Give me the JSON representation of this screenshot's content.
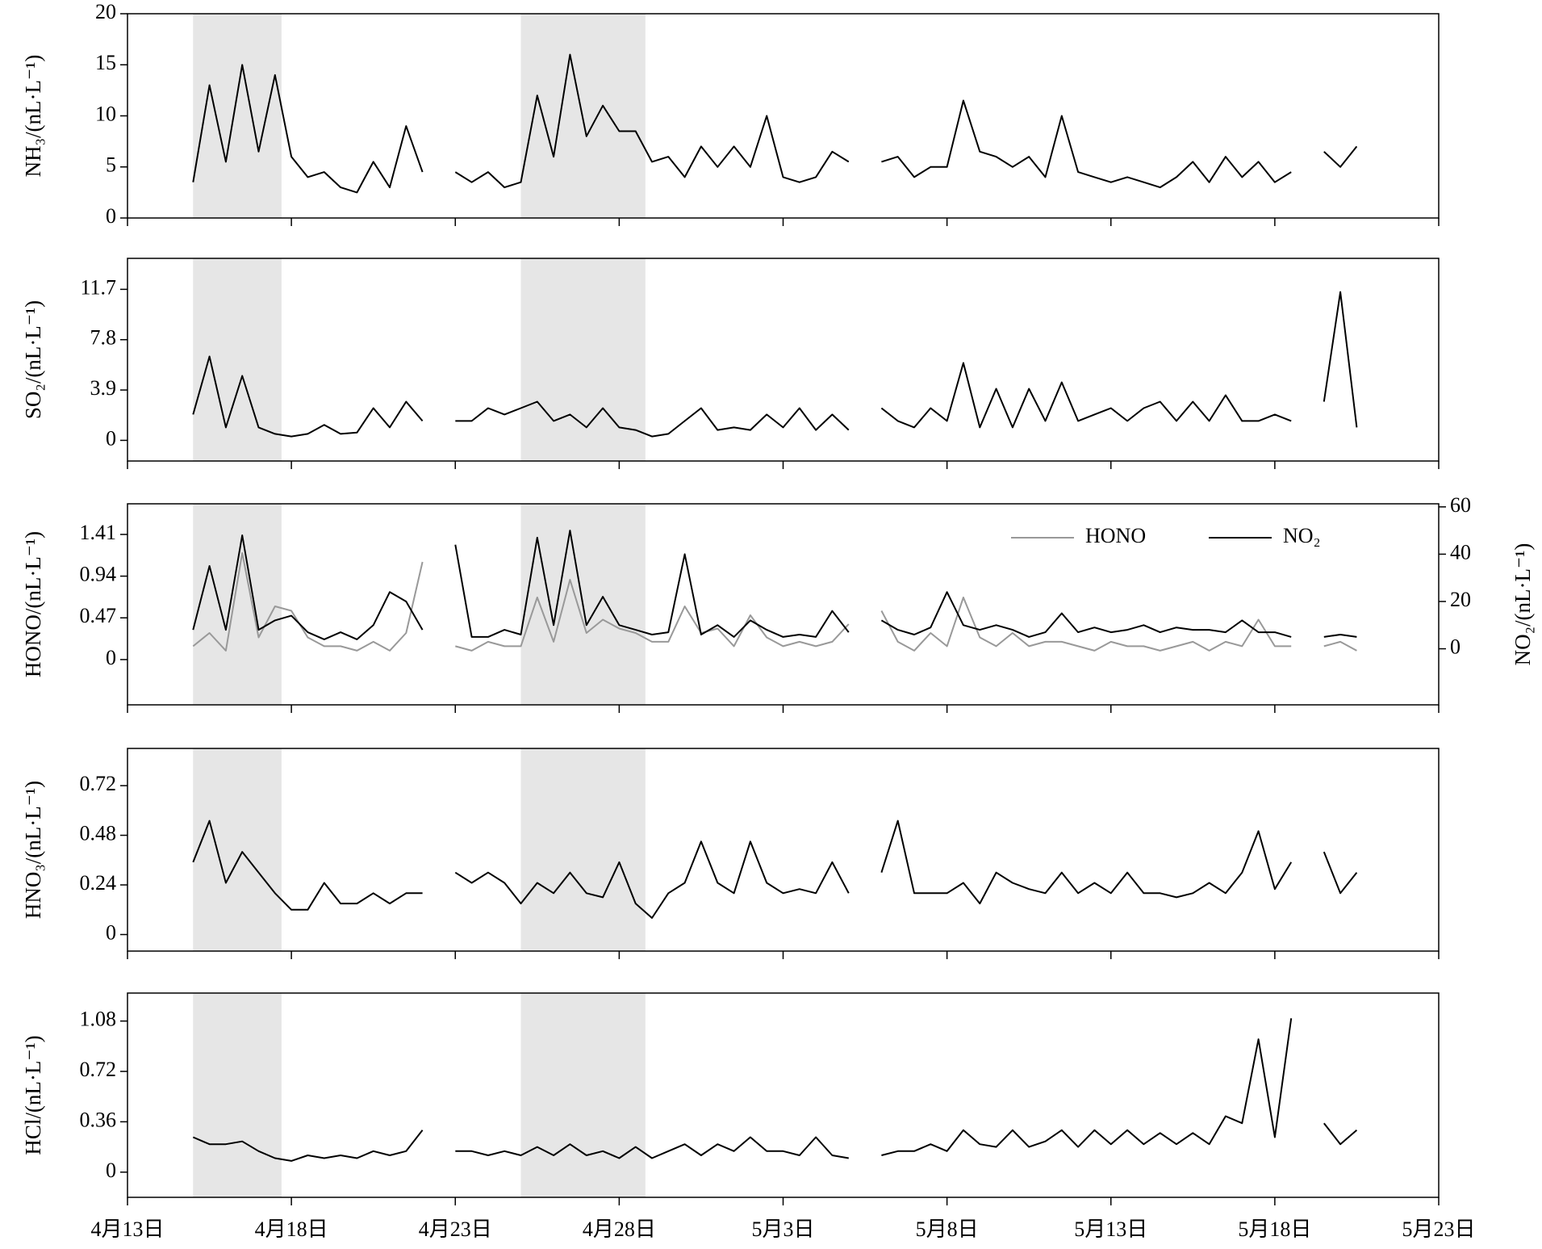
{
  "chart_data": [
    {
      "type": "line",
      "y_label": "NH₃/(nL·L⁻¹)",
      "x": [
        2,
        2.5,
        3,
        3.5,
        4,
        4.5,
        5,
        5.5,
        6,
        6.5,
        7,
        7.5,
        8,
        8.5,
        9,
        9.5,
        10,
        10.5,
        11,
        11.5,
        12,
        12.5,
        13,
        13.5,
        14,
        14.5,
        15,
        15.5,
        16,
        16.5,
        17,
        17.5,
        18,
        18.5,
        19,
        19.5,
        20,
        20.5,
        21,
        21.5,
        22,
        22.5,
        23,
        23.5,
        24,
        24.5,
        25,
        25.5,
        26,
        26.5,
        27,
        27.5,
        28,
        28.5,
        29,
        29.5,
        30,
        30.5,
        31,
        31.5,
        32,
        32.5,
        33,
        33.5,
        34,
        34.5,
        35,
        35.5,
        36,
        36.5,
        37,
        37.5
      ],
      "values": [
        3.5,
        13,
        5.5,
        15,
        6.5,
        14,
        6,
        4,
        4.5,
        3,
        2.5,
        5.5,
        3,
        9,
        4.5,
        null,
        4.5,
        3.5,
        4.5,
        3,
        3.5,
        12,
        6,
        16,
        8,
        11,
        8.5,
        8.5,
        5.5,
        6,
        4,
        7,
        5,
        7,
        5,
        10,
        4,
        3.5,
        4,
        6.5,
        5.5,
        null,
        5.5,
        6,
        4,
        5,
        5,
        11.5,
        6.5,
        6,
        5,
        6,
        4,
        10,
        4.5,
        4,
        3.5,
        4,
        3.5,
        3,
        4,
        5.5,
        3.5,
        6,
        4,
        5.5,
        3.5,
        4.5,
        null,
        6.5,
        5,
        7
      ],
      "color": "#000000",
      "xlim": [
        0,
        40
      ],
      "xticks": [
        0,
        5,
        10,
        15,
        20,
        25,
        30,
        35,
        40
      ],
      "show_xtick_labels": false,
      "ylim": [
        0,
        20
      ],
      "yticks": [
        0,
        5,
        10,
        15,
        20
      ],
      "shaded": [
        [
          2,
          4.7
        ],
        [
          12,
          15.8
        ]
      ],
      "shade_color": "#e6e6e6"
    },
    {
      "type": "line",
      "y_label": "SO₂/(nL·L⁻¹)",
      "x": [
        2,
        2.5,
        3,
        3.5,
        4,
        4.5,
        5,
        5.5,
        6,
        6.5,
        7,
        7.5,
        8,
        8.5,
        9,
        9.5,
        10,
        10.5,
        11,
        11.5,
        12,
        12.5,
        13,
        13.5,
        14,
        14.5,
        15,
        15.5,
        16,
        16.5,
        17,
        17.5,
        18,
        18.5,
        19,
        19.5,
        20,
        20.5,
        21,
        21.5,
        22,
        22.5,
        23,
        23.5,
        24,
        24.5,
        25,
        25.5,
        26,
        26.5,
        27,
        27.5,
        28,
        28.5,
        29,
        29.5,
        30,
        30.5,
        31,
        31.5,
        32,
        32.5,
        33,
        33.5,
        34,
        34.5,
        35,
        35.5,
        36,
        36.5,
        37,
        37.5
      ],
      "values": [
        2,
        6.5,
        1,
        5,
        1,
        0.5,
        0.3,
        0.5,
        1.2,
        0.5,
        0.6,
        2.5,
        1,
        3,
        1.5,
        null,
        1.5,
        1.5,
        2.5,
        2,
        2.5,
        3,
        1.5,
        2,
        1,
        2.5,
        1,
        0.8,
        0.3,
        0.5,
        1.5,
        2.5,
        0.8,
        1,
        0.8,
        2,
        1,
        2.5,
        0.8,
        2,
        0.8,
        null,
        2.5,
        1.5,
        1,
        2.5,
        1.5,
        6,
        1,
        4,
        1,
        4,
        1.5,
        4.5,
        1.5,
        2,
        2.5,
        1.5,
        2.5,
        3,
        1.5,
        3,
        1.5,
        3.5,
        1.5,
        1.5,
        2,
        1.5,
        null,
        3,
        11.5,
        1
      ],
      "color": "#000000",
      "xlim": [
        0,
        40
      ],
      "xticks": [
        0,
        5,
        10,
        15,
        20,
        25,
        30,
        35,
        40
      ],
      "show_xtick_labels": false,
      "ylim": [
        -1.6,
        14.1
      ],
      "yticks": [
        0,
        3.9,
        7.8,
        11.7
      ],
      "shaded": [
        [
          2,
          4.7
        ],
        [
          12,
          15.8
        ]
      ],
      "shade_color": "#e6e6e6"
    },
    {
      "type": "line",
      "y_label": "HONO/(nL·L⁻¹)",
      "y2_label": "NO₂/(nL·L⁻¹)",
      "x": [
        2,
        2.5,
        3,
        3.5,
        4,
        4.5,
        5,
        5.5,
        6,
        6.5,
        7,
        7.5,
        8,
        8.5,
        9,
        9.5,
        10,
        10.5,
        11,
        11.5,
        12,
        12.5,
        13,
        13.5,
        14,
        14.5,
        15,
        15.5,
        16,
        16.5,
        17,
        17.5,
        18,
        18.5,
        19,
        19.5,
        20,
        20.5,
        21,
        21.5,
        22,
        22.5,
        23,
        23.5,
        24,
        24.5,
        25,
        25.5,
        26,
        26.5,
        27,
        27.5,
        28,
        28.5,
        29,
        29.5,
        30,
        30.5,
        31,
        31.5,
        32,
        32.5,
        33,
        33.5,
        34,
        34.5,
        35,
        35.5,
        36,
        36.5,
        37,
        37.5
      ],
      "series": [
        {
          "name": "HONO",
          "color": "#999999",
          "values": [
            0.15,
            0.3,
            0.1,
            1.2,
            0.25,
            0.6,
            0.55,
            0.25,
            0.15,
            0.15,
            0.1,
            0.2,
            0.1,
            0.3,
            1.1,
            null,
            0.15,
            0.1,
            0.2,
            0.15,
            0.15,
            0.7,
            0.2,
            0.9,
            0.3,
            0.45,
            0.35,
            0.3,
            0.2,
            0.2,
            0.6,
            0.3,
            0.35,
            0.15,
            0.5,
            0.25,
            0.15,
            0.2,
            0.15,
            0.2,
            0.4,
            null,
            0.55,
            0.2,
            0.1,
            0.3,
            0.15,
            0.7,
            0.25,
            0.15,
            0.3,
            0.15,
            0.2,
            0.2,
            0.15,
            0.1,
            0.2,
            0.15,
            0.15,
            0.1,
            0.15,
            0.2,
            0.1,
            0.2,
            0.15,
            0.45,
            0.15,
            0.15,
            null,
            0.15,
            0.2,
            0.1
          ]
        },
        {
          "name": "NO₂",
          "color": "#000000",
          "axis": "y2",
          "values": [
            8,
            35,
            8,
            48,
            8,
            12,
            14,
            7,
            4,
            7,
            4,
            10,
            24,
            20,
            8,
            null,
            44,
            5,
            5,
            8,
            6,
            47,
            10,
            50,
            10,
            22,
            10,
            8,
            6,
            7,
            40,
            6,
            10,
            5,
            12,
            8,
            5,
            6,
            5,
            16,
            7,
            null,
            12,
            8,
            6,
            9,
            24,
            10,
            8,
            10,
            8,
            5,
            7,
            15,
            7,
            9,
            7,
            8,
            10,
            7,
            9,
            8,
            8,
            7,
            12,
            7,
            7,
            5,
            null,
            5,
            6,
            5
          ]
        }
      ],
      "legend": "upper right",
      "xlim": [
        0,
        40
      ],
      "xticks": [
        0,
        5,
        10,
        15,
        20,
        25,
        30,
        35,
        40
      ],
      "show_xtick_labels": false,
      "ylim": [
        -0.51,
        1.755
      ],
      "yticks": [
        0,
        0.47,
        0.94,
        1.41
      ],
      "y2lim": [
        -23.7,
        61.3
      ],
      "y2ticks": [
        0,
        20,
        40,
        60
      ],
      "shaded": [
        [
          2,
          4.7
        ],
        [
          12,
          15.8
        ]
      ],
      "shade_color": "#e6e6e6"
    },
    {
      "type": "line",
      "y_label": "HNO₃/(nL·L⁻¹)",
      "x": [
        2,
        2.5,
        3,
        3.5,
        4,
        4.5,
        5,
        5.5,
        6,
        6.5,
        7,
        7.5,
        8,
        8.5,
        9,
        9.5,
        10,
        10.5,
        11,
        11.5,
        12,
        12.5,
        13,
        13.5,
        14,
        14.5,
        15,
        15.5,
        16,
        16.5,
        17,
        17.5,
        18,
        18.5,
        19,
        19.5,
        20,
        20.5,
        21,
        21.5,
        22,
        22.5,
        23,
        23.5,
        24,
        24.5,
        25,
        25.5,
        26,
        26.5,
        27,
        27.5,
        28,
        28.5,
        29,
        29.5,
        30,
        30.5,
        31,
        31.5,
        32,
        32.5,
        33,
        33.5,
        34,
        34.5,
        35,
        35.5,
        36,
        36.5,
        37,
        37.5
      ],
      "values": [
        0.35,
        0.55,
        0.25,
        0.4,
        0.3,
        0.2,
        0.12,
        0.12,
        0.25,
        0.15,
        0.15,
        0.2,
        0.15,
        0.2,
        0.2,
        null,
        0.3,
        0.25,
        0.3,
        0.25,
        0.15,
        0.25,
        0.2,
        0.3,
        0.2,
        0.18,
        0.35,
        0.15,
        0.08,
        0.2,
        0.25,
        0.45,
        0.25,
        0.2,
        0.45,
        0.25,
        0.2,
        0.22,
        0.2,
        0.35,
        0.2,
        null,
        0.3,
        0.55,
        0.2,
        0.2,
        0.2,
        0.25,
        0.15,
        0.3,
        0.25,
        0.22,
        0.2,
        0.3,
        0.2,
        0.25,
        0.2,
        0.3,
        0.2,
        0.2,
        0.18,
        0.2,
        0.25,
        0.2,
        0.3,
        0.5,
        0.22,
        0.35,
        null,
        0.4,
        0.2,
        0.3
      ],
      "color": "#000000",
      "xlim": [
        0,
        40
      ],
      "xticks": [
        0,
        5,
        10,
        15,
        20,
        25,
        30,
        35,
        40
      ],
      "show_xtick_labels": false,
      "ylim": [
        -0.08,
        0.9
      ],
      "yticks": [
        0,
        0.24,
        0.48,
        0.72
      ],
      "shaded": [
        [
          2,
          4.7
        ],
        [
          12,
          15.8
        ]
      ],
      "shade_color": "#e6e6e6"
    },
    {
      "type": "line",
      "y_label": "HCl/(nL·L⁻¹)",
      "x": [
        2,
        2.5,
        3,
        3.5,
        4,
        4.5,
        5,
        5.5,
        6,
        6.5,
        7,
        7.5,
        8,
        8.5,
        9,
        9.5,
        10,
        10.5,
        11,
        11.5,
        12,
        12.5,
        13,
        13.5,
        14,
        14.5,
        15,
        15.5,
        16,
        16.5,
        17,
        17.5,
        18,
        18.5,
        19,
        19.5,
        20,
        20.5,
        21,
        21.5,
        22,
        22.5,
        23,
        23.5,
        24,
        24.5,
        25,
        25.5,
        26,
        26.5,
        27,
        27.5,
        28,
        28.5,
        29,
        29.5,
        30,
        30.5,
        31,
        31.5,
        32,
        32.5,
        33,
        33.5,
        34,
        34.5,
        35,
        35.5,
        36,
        36.5,
        37,
        37.5
      ],
      "values": [
        0.25,
        0.2,
        0.2,
        0.22,
        0.15,
        0.1,
        0.08,
        0.12,
        0.1,
        0.12,
        0.1,
        0.15,
        0.12,
        0.15,
        0.3,
        null,
        0.15,
        0.15,
        0.12,
        0.15,
        0.12,
        0.18,
        0.12,
        0.2,
        0.12,
        0.15,
        0.1,
        0.18,
        0.1,
        0.15,
        0.2,
        0.12,
        0.2,
        0.15,
        0.25,
        0.15,
        0.15,
        0.12,
        0.25,
        0.12,
        0.1,
        null,
        0.12,
        0.15,
        0.15,
        0.2,
        0.15,
        0.3,
        0.2,
        0.18,
        0.3,
        0.18,
        0.22,
        0.3,
        0.18,
        0.3,
        0.2,
        0.3,
        0.2,
        0.28,
        0.2,
        0.28,
        0.2,
        0.4,
        0.35,
        0.95,
        0.25,
        1.1,
        null,
        0.35,
        0.2,
        0.3
      ],
      "color": "#000000",
      "xlim": [
        0,
        40
      ],
      "xticks": [
        {
          "value": 0,
          "label": "4月13日"
        },
        {
          "value": 5,
          "label": "4月18日"
        },
        {
          "value": 10,
          "label": "4月23日"
        },
        {
          "value": 15,
          "label": "4月28日"
        },
        {
          "value": 20,
          "label": "5月3日"
        },
        {
          "value": 25,
          "label": "5月8日"
        },
        {
          "value": 30,
          "label": "5月13日"
        },
        {
          "value": 35,
          "label": "5月18日"
        },
        {
          "value": 40,
          "label": "5月23日"
        }
      ],
      "show_xtick_labels": true,
      "ylim": [
        -0.18,
        1.28
      ],
      "yticks": [
        0,
        0.36,
        0.72,
        1.08
      ],
      "shaded": [
        [
          2,
          4.7
        ],
        [
          12,
          15.8
        ]
      ],
      "shade_color": "#e6e6e6"
    }
  ]
}
